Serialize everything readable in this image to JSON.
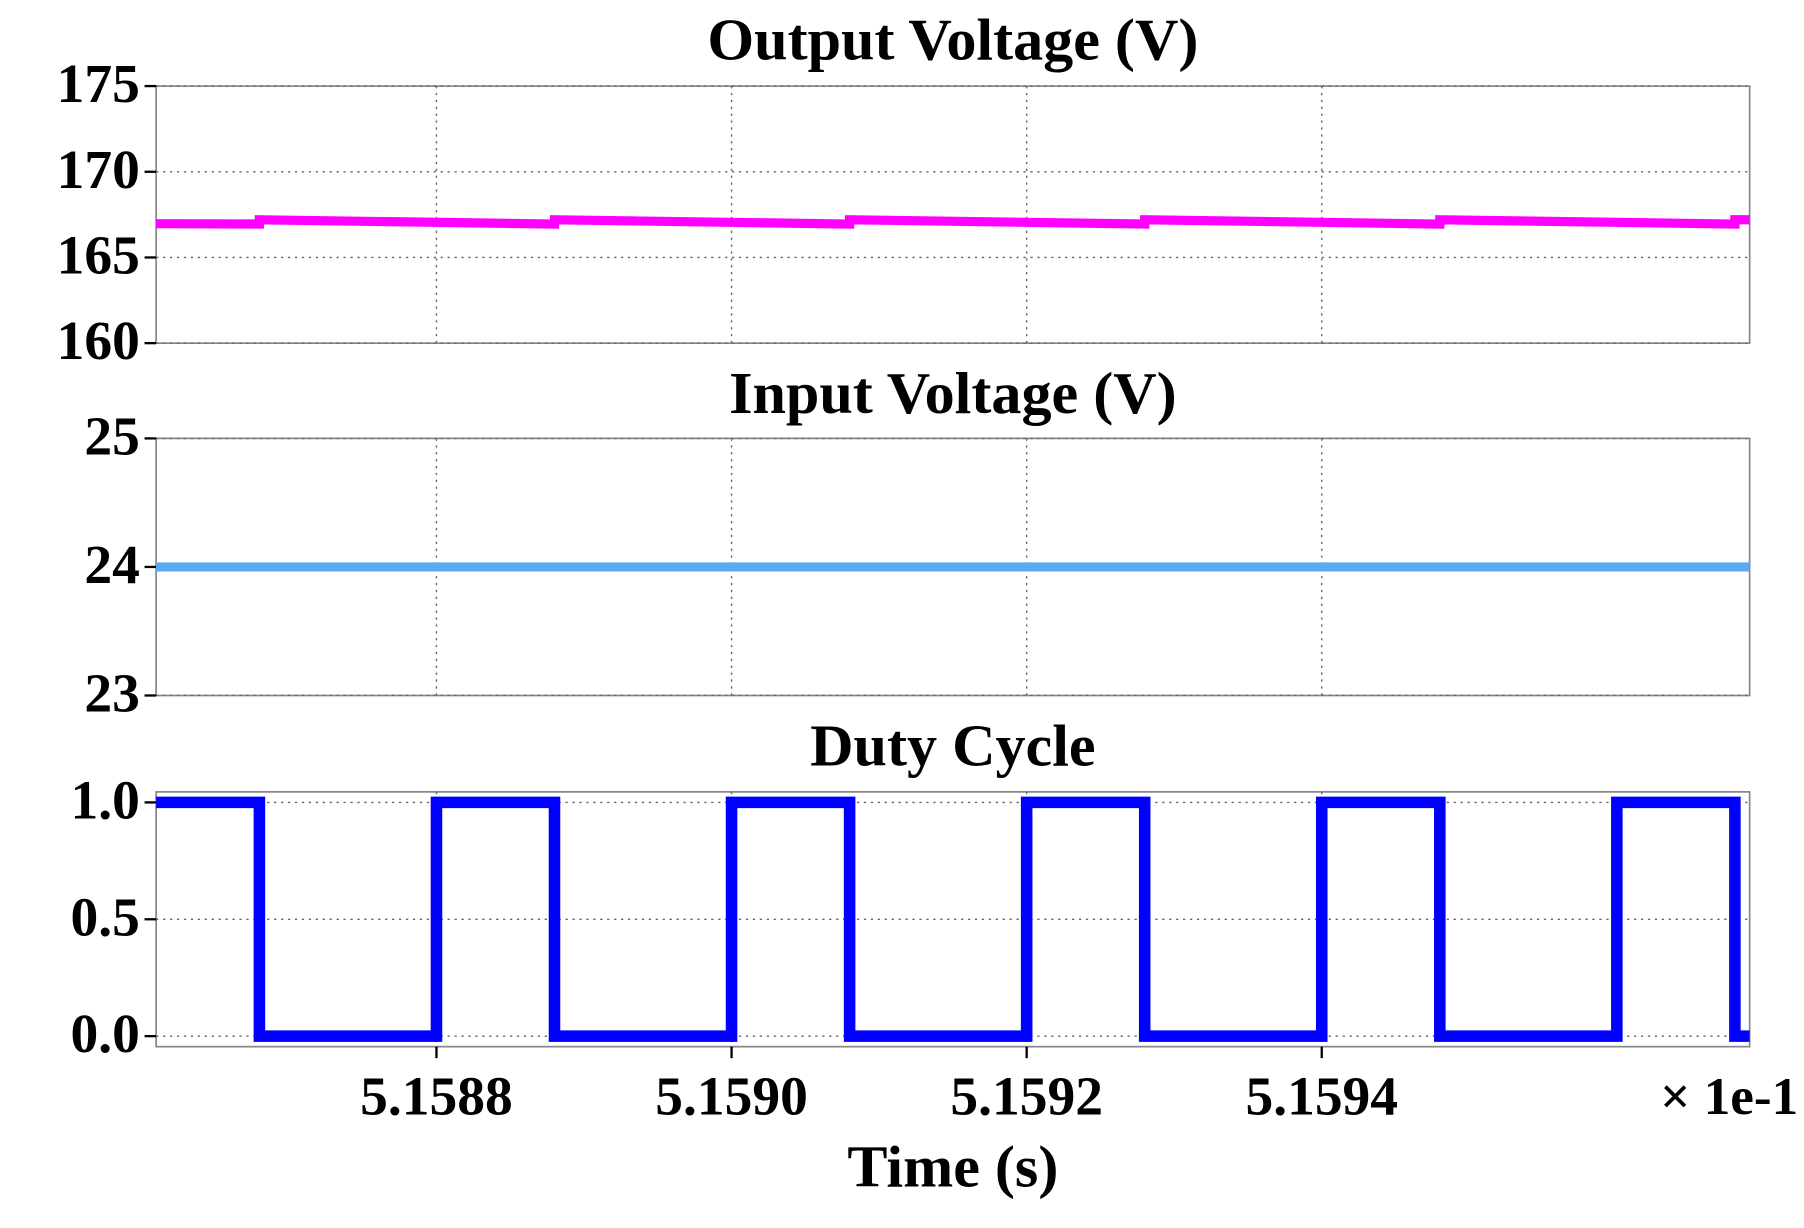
{
  "chart_data": [
    {
      "type": "line",
      "title": "Output Voltage (V)",
      "color": "#ff00ff",
      "x": [
        5.15861,
        5.15868,
        5.15868,
        5.15888,
        5.15888,
        5.15908,
        5.15908,
        5.15928,
        5.15928,
        5.15948,
        5.15948,
        5.15968,
        5.15968,
        5.15969
      ],
      "values": [
        166.97,
        166.95,
        167.2,
        166.95,
        167.2,
        166.95,
        167.2,
        166.95,
        167.2,
        166.95,
        167.2,
        166.95,
        167.2,
        167.2
      ],
      "xlim": [
        5.15861,
        5.15969
      ],
      "ylim": [
        160,
        175
      ],
      "yticks": [
        160,
        165,
        170,
        175
      ],
      "grid": true
    },
    {
      "type": "line",
      "title": "Input Voltage (V)",
      "color": "#5aa9f5",
      "x": [
        5.15861,
        5.15969
      ],
      "values": [
        24,
        24
      ],
      "xlim": [
        5.15861,
        5.15969
      ],
      "ylim": [
        23,
        25
      ],
      "yticks": [
        23,
        24,
        25
      ],
      "grid": true
    },
    {
      "type": "line",
      "title": "Duty Cycle",
      "color": "#0000ff",
      "x": [
        5.15861,
        5.15868,
        5.15868,
        5.1588,
        5.1588,
        5.15888,
        5.15888,
        5.159,
        5.159,
        5.15908,
        5.15908,
        5.1592,
        5.1592,
        5.15928,
        5.15928,
        5.1594,
        5.1594,
        5.15948,
        5.15948,
        5.1596,
        5.1596,
        5.15968,
        5.15968,
        5.15969
      ],
      "values": [
        1,
        1,
        0,
        0,
        1,
        1,
        0,
        0,
        1,
        1,
        0,
        0,
        1,
        1,
        0,
        0,
        1,
        1,
        0,
        0,
        1,
        1,
        0,
        0
      ],
      "xlim": [
        5.15861,
        5.15969
      ],
      "ylim": [
        -0.045,
        1.045
      ],
      "yticks": [
        {
          "value": 0,
          "label": "0.0"
        },
        0.5,
        {
          "value": 1,
          "label": "1.0"
        }
      ],
      "xticks": [
        5.1588,
        {
          "value": 5.159,
          "label": "5.1590"
        },
        5.1592,
        5.1594
      ],
      "xlabel": "Time (s)",
      "x_offset_label": "× 1e-1",
      "grid": true
    }
  ]
}
